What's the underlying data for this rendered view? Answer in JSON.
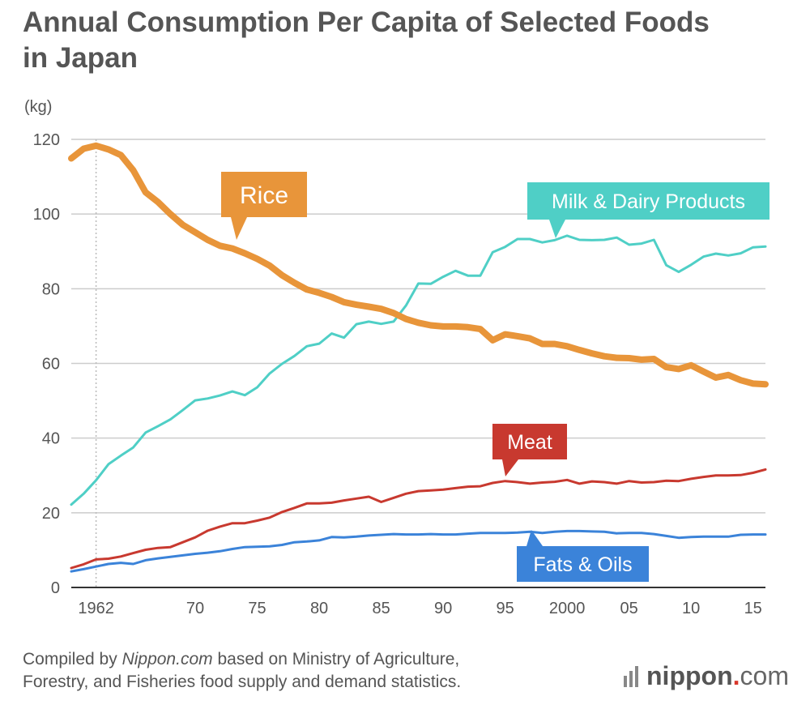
{
  "title_line1": "Annual Consumption Per Capita of Selected Foods",
  "title_line2": "in Japan",
  "footer": {
    "line1_pre": "Compiled by ",
    "line1_source": "Nippon.com",
    "line1_post": " based on Ministry of Agriculture,",
    "line2": "Forestry, and Fisheries food supply and demand statistics."
  },
  "logo": {
    "name": "nippon",
    "dot": ".",
    "tld": "com"
  },
  "colors": {
    "rice": "#e8953a",
    "milk": "#4fcfc6",
    "meat": "#c8392f",
    "fats": "#3b83d9",
    "grid": "#cccccc",
    "text": "#555555"
  },
  "chart_data": {
    "type": "line",
    "ylabel": "(kg)",
    "ylim": [
      0,
      120
    ],
    "yticks": [
      0,
      20,
      40,
      60,
      80,
      100,
      120
    ],
    "xlim": [
      1960,
      2016
    ],
    "xticks": [
      {
        "year": 1962,
        "label": "1962"
      },
      {
        "year": 1970,
        "label": "70"
      },
      {
        "year": 1975,
        "label": "75"
      },
      {
        "year": 1980,
        "label": "80"
      },
      {
        "year": 1985,
        "label": "85"
      },
      {
        "year": 1990,
        "label": "90"
      },
      {
        "year": 1995,
        "label": "95"
      },
      {
        "year": 2000,
        "label": "2000"
      },
      {
        "year": 2005,
        "label": "05"
      },
      {
        "year": 2010,
        "label": "10"
      },
      {
        "year": 2015,
        "label": "15"
      }
    ],
    "marker_year": 1962,
    "grid": true,
    "series": [
      {
        "name": "Rice",
        "key": "rice",
        "width": 8,
        "points": [
          [
            1960,
            114.9
          ],
          [
            1961,
            117.5
          ],
          [
            1962,
            118.3
          ],
          [
            1963,
            117.3
          ],
          [
            1964,
            115.8
          ],
          [
            1965,
            111.7
          ],
          [
            1966,
            105.8
          ],
          [
            1967,
            103.2
          ],
          [
            1968,
            100
          ],
          [
            1969,
            97.1
          ],
          [
            1970,
            95.1
          ],
          [
            1971,
            93.1
          ],
          [
            1972,
            91.5
          ],
          [
            1973,
            90.8
          ],
          [
            1974,
            89.5
          ],
          [
            1975,
            88
          ],
          [
            1976,
            86.2
          ],
          [
            1977,
            83.6
          ],
          [
            1978,
            81.6
          ],
          [
            1979,
            79.8
          ],
          [
            1980,
            78.9
          ],
          [
            1981,
            77.8
          ],
          [
            1982,
            76.4
          ],
          [
            1983,
            75.7
          ],
          [
            1984,
            75.2
          ],
          [
            1985,
            74.6
          ],
          [
            1986,
            73.5
          ],
          [
            1987,
            71.9
          ],
          [
            1988,
            70.9
          ],
          [
            1989,
            70.2
          ],
          [
            1990,
            69.9
          ],
          [
            1991,
            69.9
          ],
          [
            1992,
            69.7
          ],
          [
            1993,
            69.2
          ],
          [
            1994,
            66.2
          ],
          [
            1995,
            67.8
          ],
          [
            1996,
            67.3
          ],
          [
            1997,
            66.7
          ],
          [
            1998,
            65.2
          ],
          [
            1999,
            65.2
          ],
          [
            2000,
            64.6
          ],
          [
            2001,
            63.6
          ],
          [
            2002,
            62.7
          ],
          [
            2003,
            61.9
          ],
          [
            2004,
            61.5
          ],
          [
            2005,
            61.4
          ],
          [
            2006,
            61
          ],
          [
            2007,
            61.2
          ],
          [
            2008,
            59
          ],
          [
            2009,
            58.5
          ],
          [
            2010,
            59.5
          ],
          [
            2011,
            57.8
          ],
          [
            2012,
            56.2
          ],
          [
            2013,
            56.9
          ],
          [
            2014,
            55.5
          ],
          [
            2015,
            54.6
          ],
          [
            2016,
            54.4
          ]
        ]
      },
      {
        "name": "Milk & Dairy Products",
        "key": "milk",
        "width": 3,
        "points": [
          [
            1960,
            22.2
          ],
          [
            1961,
            25.1
          ],
          [
            1962,
            28.7
          ],
          [
            1963,
            33
          ],
          [
            1964,
            35.3
          ],
          [
            1965,
            37.5
          ],
          [
            1966,
            41.5
          ],
          [
            1967,
            43.2
          ],
          [
            1968,
            45
          ],
          [
            1969,
            47.5
          ],
          [
            1970,
            50.1
          ],
          [
            1971,
            50.6
          ],
          [
            1972,
            51.4
          ],
          [
            1973,
            52.5
          ],
          [
            1974,
            51.5
          ],
          [
            1975,
            53.6
          ],
          [
            1976,
            57.3
          ],
          [
            1977,
            59.9
          ],
          [
            1978,
            62
          ],
          [
            1979,
            64.6
          ],
          [
            1980,
            65.3
          ],
          [
            1981,
            68
          ],
          [
            1982,
            66.9
          ],
          [
            1983,
            70.5
          ],
          [
            1984,
            71.2
          ],
          [
            1985,
            70.6
          ],
          [
            1986,
            71.2
          ],
          [
            1987,
            75.5
          ],
          [
            1988,
            81.4
          ],
          [
            1989,
            81.3
          ],
          [
            1990,
            83.2
          ],
          [
            1991,
            84.8
          ],
          [
            1992,
            83.5
          ],
          [
            1993,
            83.5
          ],
          [
            1994,
            89.8
          ],
          [
            1995,
            91.2
          ],
          [
            1996,
            93.3
          ],
          [
            1997,
            93.3
          ],
          [
            1998,
            92.4
          ],
          [
            1999,
            93
          ],
          [
            2000,
            94.2
          ],
          [
            2001,
            93.1
          ],
          [
            2002,
            93
          ],
          [
            2003,
            93.1
          ],
          [
            2004,
            93.7
          ],
          [
            2005,
            91.8
          ],
          [
            2006,
            92.1
          ],
          [
            2007,
            93.1
          ],
          [
            2008,
            86.3
          ],
          [
            2009,
            84.5
          ],
          [
            2010,
            86.4
          ],
          [
            2011,
            88.6
          ],
          [
            2012,
            89.4
          ],
          [
            2013,
            88.9
          ],
          [
            2014,
            89.5
          ],
          [
            2015,
            91.1
          ],
          [
            2016,
            91.3
          ]
        ]
      },
      {
        "name": "Meat",
        "key": "meat",
        "width": 3,
        "points": [
          [
            1960,
            5.2
          ],
          [
            1961,
            6.2
          ],
          [
            1962,
            7.5
          ],
          [
            1963,
            7.7
          ],
          [
            1964,
            8.3
          ],
          [
            1965,
            9.2
          ],
          [
            1966,
            10.1
          ],
          [
            1967,
            10.6
          ],
          [
            1968,
            10.8
          ],
          [
            1969,
            12.1
          ],
          [
            1970,
            13.4
          ],
          [
            1971,
            15.2
          ],
          [
            1972,
            16.3
          ],
          [
            1973,
            17.2
          ],
          [
            1974,
            17.2
          ],
          [
            1975,
            17.9
          ],
          [
            1976,
            18.7
          ],
          [
            1977,
            20.2
          ],
          [
            1978,
            21.3
          ],
          [
            1979,
            22.5
          ],
          [
            1980,
            22.5
          ],
          [
            1981,
            22.7
          ],
          [
            1982,
            23.3
          ],
          [
            1983,
            23.8
          ],
          [
            1984,
            24.3
          ],
          [
            1985,
            22.9
          ],
          [
            1986,
            24
          ],
          [
            1987,
            25.1
          ],
          [
            1988,
            25.8
          ],
          [
            1989,
            26
          ],
          [
            1990,
            26.2
          ],
          [
            1991,
            26.6
          ],
          [
            1992,
            27
          ],
          [
            1993,
            27.1
          ],
          [
            1994,
            28
          ],
          [
            1995,
            28.5
          ],
          [
            1996,
            28.2
          ],
          [
            1997,
            27.8
          ],
          [
            1998,
            28.1
          ],
          [
            1999,
            28.3
          ],
          [
            2000,
            28.8
          ],
          [
            2001,
            27.8
          ],
          [
            2002,
            28.4
          ],
          [
            2003,
            28.2
          ],
          [
            2004,
            27.8
          ],
          [
            2005,
            28.5
          ],
          [
            2006,
            28.1
          ],
          [
            2007,
            28.2
          ],
          [
            2008,
            28.6
          ],
          [
            2009,
            28.5
          ],
          [
            2010,
            29.1
          ],
          [
            2011,
            29.6
          ],
          [
            2012,
            30
          ],
          [
            2013,
            30
          ],
          [
            2014,
            30.1
          ],
          [
            2015,
            30.7
          ],
          [
            2016,
            31.6
          ]
        ]
      },
      {
        "name": "Fats & Oils",
        "key": "fats",
        "width": 3,
        "points": [
          [
            1960,
            4.3
          ],
          [
            1961,
            4.9
          ],
          [
            1962,
            5.6
          ],
          [
            1963,
            6.3
          ],
          [
            1964,
            6.6
          ],
          [
            1965,
            6.3
          ],
          [
            1966,
            7.3
          ],
          [
            1967,
            7.8
          ],
          [
            1968,
            8.2
          ],
          [
            1969,
            8.6
          ],
          [
            1970,
            9
          ],
          [
            1971,
            9.3
          ],
          [
            1972,
            9.7
          ],
          [
            1973,
            10.3
          ],
          [
            1974,
            10.8
          ],
          [
            1975,
            10.9
          ],
          [
            1976,
            11
          ],
          [
            1977,
            11.4
          ],
          [
            1978,
            12.1
          ],
          [
            1979,
            12.3
          ],
          [
            1980,
            12.6
          ],
          [
            1981,
            13.5
          ],
          [
            1982,
            13.4
          ],
          [
            1983,
            13.6
          ],
          [
            1984,
            13.9
          ],
          [
            1985,
            14.1
          ],
          [
            1986,
            14.3
          ],
          [
            1987,
            14.2
          ],
          [
            1988,
            14.2
          ],
          [
            1989,
            14.3
          ],
          [
            1990,
            14.2
          ],
          [
            1991,
            14.2
          ],
          [
            1992,
            14.4
          ],
          [
            1993,
            14.6
          ],
          [
            1994,
            14.6
          ],
          [
            1995,
            14.6
          ],
          [
            1996,
            14.7
          ],
          [
            1997,
            14.9
          ],
          [
            1998,
            14.6
          ],
          [
            1999,
            14.9
          ],
          [
            2000,
            15.1
          ],
          [
            2001,
            15.1
          ],
          [
            2002,
            15
          ],
          [
            2003,
            14.9
          ],
          [
            2004,
            14.5
          ],
          [
            2005,
            14.6
          ],
          [
            2006,
            14.6
          ],
          [
            2007,
            14.3
          ],
          [
            2008,
            13.8
          ],
          [
            2009,
            13.3
          ],
          [
            2010,
            13.5
          ],
          [
            2011,
            13.6
          ],
          [
            2012,
            13.6
          ],
          [
            2013,
            13.6
          ],
          [
            2014,
            14.1
          ],
          [
            2015,
            14.2
          ],
          [
            2016,
            14.2
          ]
        ]
      }
    ],
    "annotations": [
      {
        "series": "rice",
        "text": "Rice"
      },
      {
        "series": "milk",
        "text": "Milk & Dairy Products"
      },
      {
        "series": "meat",
        "text": "Meat"
      },
      {
        "series": "fats",
        "text": "Fats & Oils"
      }
    ]
  }
}
